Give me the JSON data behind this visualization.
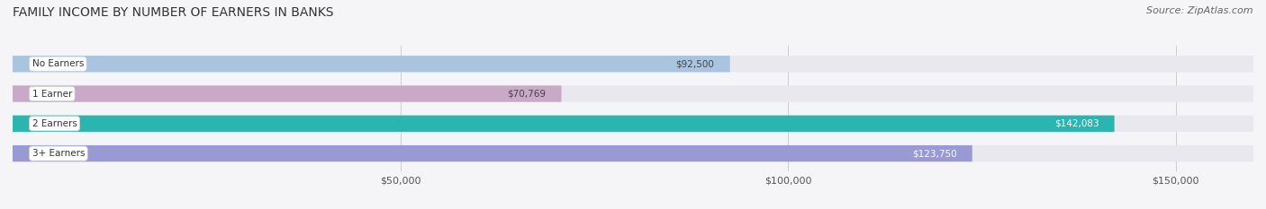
{
  "title": "FAMILY INCOME BY NUMBER OF EARNERS IN BANKS",
  "source": "Source: ZipAtlas.com",
  "categories": [
    "No Earners",
    "1 Earner",
    "2 Earners",
    "3+ Earners"
  ],
  "values": [
    92500,
    70769,
    142083,
    123750
  ],
  "bar_colors": [
    "#a8c4e0",
    "#c9a8c8",
    "#2ab5b0",
    "#9999d4"
  ],
  "bar_bg_color": "#e8e8ee",
  "label_colors": [
    "#444444",
    "#444444",
    "#ffffff",
    "#ffffff"
  ],
  "xlim": [
    0,
    160000
  ],
  "xticks": [
    50000,
    100000,
    150000
  ],
  "xtick_labels": [
    "$50,000",
    "$100,000",
    "$150,000"
  ],
  "value_labels": [
    "$92,500",
    "$70,769",
    "$142,083",
    "$123,750"
  ],
  "background_color": "#f5f5f8",
  "title_fontsize": 10,
  "source_fontsize": 8,
  "bar_height": 0.55,
  "figsize": [
    14.06,
    2.33
  ],
  "dpi": 100
}
